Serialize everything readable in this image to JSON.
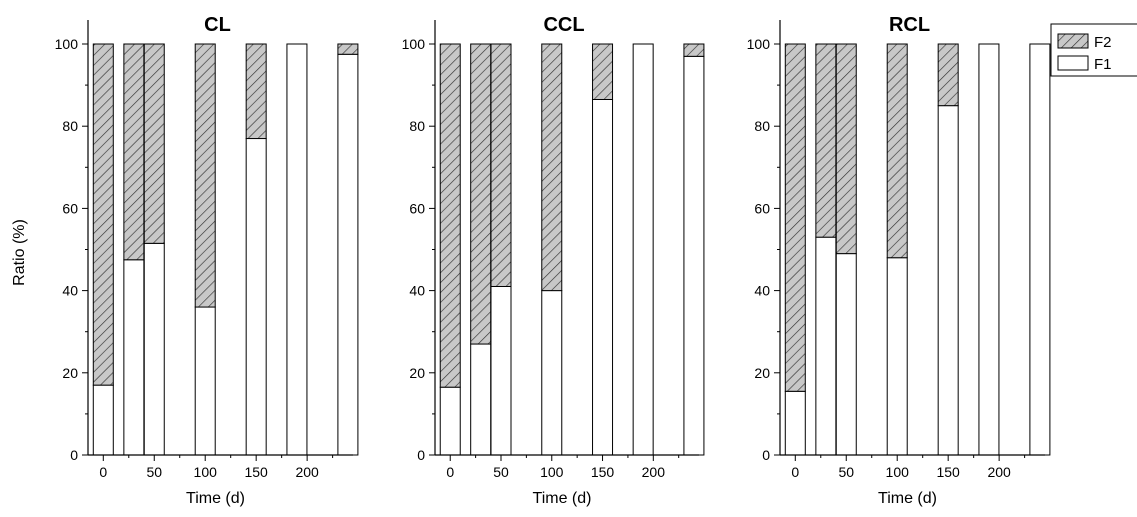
{
  "chart_data": [
    {
      "type": "bar",
      "stacked": true,
      "title": "CL",
      "xlabel": "Time (d)",
      "ylabel": "Ratio (%)",
      "xtick_labels": [
        "0",
        "50",
        "100",
        "150",
        "200"
      ],
      "ytick_labels": [
        "0",
        "20",
        "40",
        "60",
        "80",
        "100"
      ],
      "xlim": [
        -15,
        245
      ],
      "ylim": [
        0,
        100
      ],
      "x": [
        0,
        30,
        50,
        100,
        150,
        190,
        240
      ],
      "series": [
        {
          "name": "F1",
          "fill": "#ffffff",
          "values": [
            17,
            47.5,
            51.5,
            36,
            77,
            100,
            97.5
          ]
        },
        {
          "name": "F2",
          "fill": "#c8c8c8",
          "pattern": "hatched",
          "values": [
            83,
            52.5,
            48.5,
            64,
            23,
            0,
            2.5
          ]
        }
      ]
    },
    {
      "type": "bar",
      "stacked": true,
      "title": "CCL",
      "xlabel": "Time (d)",
      "ylabel": "",
      "xtick_labels": [
        "0",
        "50",
        "100",
        "150",
        "200"
      ],
      "ytick_labels": [
        "0",
        "20",
        "40",
        "60",
        "80",
        "100"
      ],
      "xlim": [
        -15,
        245
      ],
      "ylim": [
        0,
        100
      ],
      "x": [
        0,
        30,
        50,
        100,
        150,
        190,
        240
      ],
      "series": [
        {
          "name": "F1",
          "fill": "#ffffff",
          "values": [
            16.5,
            27,
            41,
            40,
            86.5,
            100,
            97
          ]
        },
        {
          "name": "F2",
          "fill": "#c8c8c8",
          "pattern": "hatched",
          "values": [
            83.5,
            73,
            59,
            60,
            13.5,
            0,
            3
          ]
        }
      ]
    },
    {
      "type": "bar",
      "stacked": true,
      "title": "RCL",
      "xlabel": "Time (d)",
      "ylabel": "",
      "xtick_labels": [
        "0",
        "50",
        "100",
        "150",
        "200"
      ],
      "ytick_labels": [
        "0",
        "20",
        "40",
        "60",
        "80",
        "100"
      ],
      "xlim": [
        -15,
        245
      ],
      "ylim": [
        0,
        100
      ],
      "x": [
        0,
        30,
        50,
        100,
        150,
        190,
        240
      ],
      "series": [
        {
          "name": "F1",
          "fill": "#ffffff",
          "values": [
            15.5,
            53,
            49,
            48,
            85,
            100,
            100
          ]
        },
        {
          "name": "F2",
          "fill": "#c8c8c8",
          "pattern": "hatched",
          "values": [
            84.5,
            47,
            51,
            52,
            15,
            0,
            0
          ]
        }
      ],
      "legend": {
        "position": "top-right",
        "entries": [
          "F2",
          "F1"
        ]
      }
    }
  ]
}
